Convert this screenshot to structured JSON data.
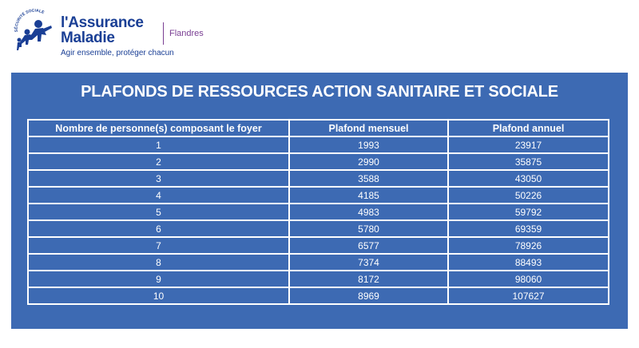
{
  "header": {
    "brand_line1": "l'Assurance",
    "brand_line2": "Maladie",
    "tagline": "Agir ensemble, protéger chacun",
    "logo_arc_text": "SÉCURITÉ SOCIALE",
    "region": "Flandres",
    "logo_icon": "running-figures-icon"
  },
  "panel": {
    "title": "PLAFONDS DE RESSOURCES ACTION SANITAIRE ET SOCIALE",
    "columns": [
      "Nombre de personne(s) composant le foyer",
      "Plafond mensuel",
      "Plafond annuel"
    ],
    "rows": [
      [
        "1",
        "1993",
        "23917"
      ],
      [
        "2",
        "2990",
        "35875"
      ],
      [
        "3",
        "3588",
        "43050"
      ],
      [
        "4",
        "4185",
        "50226"
      ],
      [
        "5",
        "4983",
        "59792"
      ],
      [
        "6",
        "5780",
        "69359"
      ],
      [
        "7",
        "6577",
        "78926"
      ],
      [
        "8",
        "7374",
        "88493"
      ],
      [
        "9",
        "8172",
        "98060"
      ],
      [
        "10",
        "8969",
        "107627"
      ]
    ]
  },
  "colors": {
    "brand_blue": "#1a3f95",
    "panel_blue": "#3d6ab3",
    "region_purple": "#7a3f93",
    "text_white": "#ffffff"
  }
}
